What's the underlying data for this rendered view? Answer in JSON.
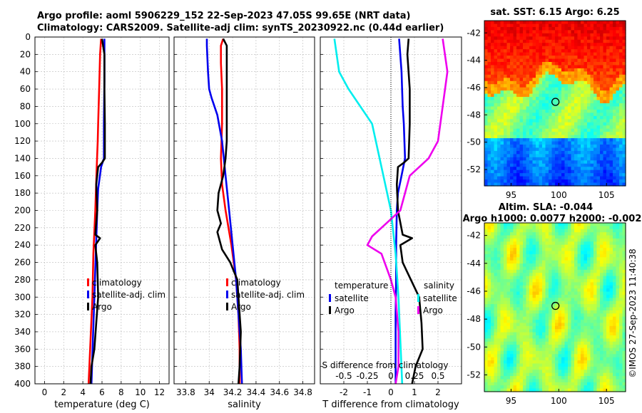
{
  "figure": {
    "title_line1": "Argo profile: aoml 5906229_152 22-Sep-2023 47.05S 99.65E (NRT data)",
    "title_line2": "Climatology: CARS2009. Satellite-adj clim: synTS_20230922.nc (0.44d earlier)",
    "credit": "©IMOS 27-Sep-2023 11:40:38"
  },
  "colors": {
    "climatology": "#ff0000",
    "satellite": "#0000ee",
    "argo": "#000000",
    "sat_salinity": "#00eeee",
    "argo_salinity": "#ee00ee"
  },
  "chart_data": [
    {
      "type": "line",
      "id": "temperature",
      "xlabel": "temperature (deg C)",
      "ylabel": "",
      "xlim": [
        -1,
        13
      ],
      "ylim": [
        400,
        0
      ],
      "xticks": [
        "0",
        "2",
        "4",
        "6",
        "8",
        "10",
        "12"
      ],
      "yticks": [
        "0",
        "20",
        "40",
        "60",
        "80",
        "100",
        "120",
        "140",
        "160",
        "180",
        "200",
        "220",
        "240",
        "260",
        "280",
        "300",
        "320",
        "340",
        "360",
        "380",
        "400"
      ],
      "grid": true,
      "legend": [
        "climatology",
        "satellite-adj. clim",
        "Argo"
      ],
      "legend_position": "lower-right",
      "series": [
        {
          "name": "climatology",
          "color": "#ff0000",
          "depth": [
            2,
            20,
            60,
            100,
            120,
            150,
            200,
            250,
            300,
            350,
            400
          ],
          "values": [
            5.9,
            5.8,
            5.7,
            5.6,
            5.55,
            5.45,
            5.3,
            5.1,
            5.0,
            4.8,
            4.6
          ]
        },
        {
          "name": "satellite-adj. clim",
          "color": "#0000ee",
          "depth": [
            2,
            50,
            100,
            140,
            150,
            175,
            200,
            250,
            300,
            350,
            400
          ],
          "values": [
            6.25,
            6.25,
            6.2,
            6.2,
            5.9,
            5.6,
            5.5,
            5.35,
            5.2,
            5.05,
            4.9
          ]
        },
        {
          "name": "Argo",
          "color": "#000000",
          "depth": [
            2,
            20,
            60,
            100,
            140,
            145,
            150,
            170,
            200,
            228,
            232,
            240,
            260,
            300,
            330,
            360,
            380,
            400
          ],
          "values": [
            6.0,
            6.25,
            6.25,
            6.3,
            6.3,
            6.0,
            5.6,
            5.4,
            5.5,
            5.3,
            5.8,
            5.3,
            5.5,
            5.6,
            5.4,
            5.2,
            4.9,
            4.8
          ]
        }
      ]
    },
    {
      "type": "line",
      "id": "salinity",
      "xlabel": "salinity",
      "ylabel": "",
      "xlim": [
        33.7,
        34.9
      ],
      "ylim": [
        400,
        0
      ],
      "xticks": [
        "33.8",
        "34",
        "34.2",
        "34.4",
        "34.6",
        "34.8"
      ],
      "grid": true,
      "legend": [
        "climatology",
        "satellite-adj. clim",
        "Argo"
      ],
      "legend_position": "lower-right",
      "series": [
        {
          "name": "climatology",
          "color": "#ff0000",
          "depth": [
            2,
            10,
            30,
            60,
            100,
            140,
            170,
            200,
            240,
            280,
            320,
            360,
            400
          ],
          "values": [
            34.12,
            34.1,
            34.1,
            34.11,
            34.11,
            34.1,
            34.11,
            34.14,
            34.19,
            34.23,
            34.25,
            34.26,
            34.26
          ]
        },
        {
          "name": "satellite-adj. clim",
          "color": "#0000ee",
          "depth": [
            2,
            10,
            40,
            60,
            70,
            90,
            120,
            160,
            200,
            240,
            280,
            320,
            360,
            400
          ],
          "values": [
            33.98,
            33.98,
            33.99,
            34.0,
            34.02,
            34.07,
            34.11,
            34.14,
            34.17,
            34.2,
            34.23,
            34.25,
            34.27,
            34.28
          ]
        },
        {
          "name": "Argo",
          "color": "#000000",
          "depth": [
            2,
            10,
            40,
            80,
            120,
            140,
            160,
            180,
            200,
            215,
            225,
            235,
            245,
            260,
            280,
            300,
            340,
            380,
            400
          ],
          "values": [
            34.12,
            34.15,
            34.15,
            34.15,
            34.15,
            34.14,
            34.12,
            34.08,
            34.07,
            34.1,
            34.07,
            34.09,
            34.11,
            34.18,
            34.24,
            34.25,
            34.27,
            34.26,
            34.25
          ]
        }
      ]
    },
    {
      "type": "line",
      "id": "differences",
      "xlabel": "T difference from climatology",
      "x2label": "S difference from climatology",
      "xlim": [
        -3,
        3
      ],
      "ylim": [
        400,
        0
      ],
      "xticks": [
        "-2",
        "-1",
        "0",
        "1",
        "2"
      ],
      "x2ticks": [
        "-0.5",
        "-0.25",
        "0",
        "0.25",
        "0.5"
      ],
      "grid": true,
      "legend_temperature_title": "temperature",
      "legend_salinity_title": "salinity",
      "legend": [
        "satellite",
        "Argo",
        "satellite",
        "Argo"
      ],
      "legend_position": "lower",
      "series": [
        {
          "name": "temperature satellite",
          "color": "#0000ee",
          "depth": [
            2,
            40,
            80,
            100,
            140,
            160,
            180,
            200,
            240,
            280,
            320,
            360,
            400
          ],
          "values": [
            0.35,
            0.45,
            0.5,
            0.55,
            0.6,
            0.45,
            0.3,
            0.25,
            0.22,
            0.22,
            0.2,
            0.2,
            0.2
          ]
        },
        {
          "name": "temperature Argo",
          "color": "#000000",
          "depth": [
            2,
            20,
            60,
            100,
            140,
            145,
            150,
            170,
            200,
            228,
            232,
            240,
            260,
            300,
            330,
            360,
            380,
            400
          ],
          "values": [
            0.75,
            0.7,
            0.8,
            0.8,
            0.75,
            0.55,
            0.3,
            0.25,
            0.3,
            0.5,
            0.9,
            0.4,
            0.5,
            1.2,
            1.3,
            1.35,
            1.05,
            0.9
          ]
        },
        {
          "name": "salinity satellite",
          "color": "#00eeee",
          "depth": [
            2,
            40,
            60,
            100,
            150,
            200,
            250,
            300,
            350,
            400
          ],
          "values": [
            -0.6,
            -0.55,
            -0.45,
            -0.2,
            -0.1,
            0.0,
            0.05,
            0.08,
            0.1,
            0.12
          ]
        },
        {
          "name": "salinity Argo",
          "color": "#ee00ee",
          "depth": [
            2,
            40,
            80,
            120,
            140,
            160,
            200,
            215,
            230,
            240,
            250,
            280,
            300,
            340,
            380,
            400
          ],
          "values": [
            0.55,
            0.6,
            0.55,
            0.5,
            0.4,
            0.2,
            0.1,
            -0.05,
            -0.2,
            -0.25,
            -0.1,
            0.0,
            0.05,
            0.08,
            0.08,
            0.05
          ]
        }
      ]
    },
    {
      "type": "heatmap",
      "id": "sst-map",
      "title": "sat. SST: 6.15 Argo: 6.25",
      "xticks": [
        "95",
        "100",
        "105"
      ],
      "yticks": [
        "-42",
        "-44",
        "-46",
        "-48",
        "-50",
        "-52"
      ],
      "xlim": [
        92.2,
        107
      ],
      "ylim": [
        -53.2,
        -41.1
      ],
      "marker": {
        "lon": 99.65,
        "lat": -47.05
      },
      "colormap": "jet"
    },
    {
      "type": "heatmap",
      "id": "sla-map",
      "title_line1": "Altim. SLA: -0.044",
      "title_line2": "Argo h1000: 0.0077 h2000: -0.002",
      "xticks": [
        "95",
        "100",
        "105"
      ],
      "yticks": [
        "-42",
        "-44",
        "-46",
        "-48",
        "-50",
        "-52"
      ],
      "xlim": [
        92.2,
        107
      ],
      "ylim": [
        -53.2,
        -41.1
      ],
      "marker": {
        "lon": 99.65,
        "lat": -47.05
      },
      "colormap": "jet"
    }
  ]
}
